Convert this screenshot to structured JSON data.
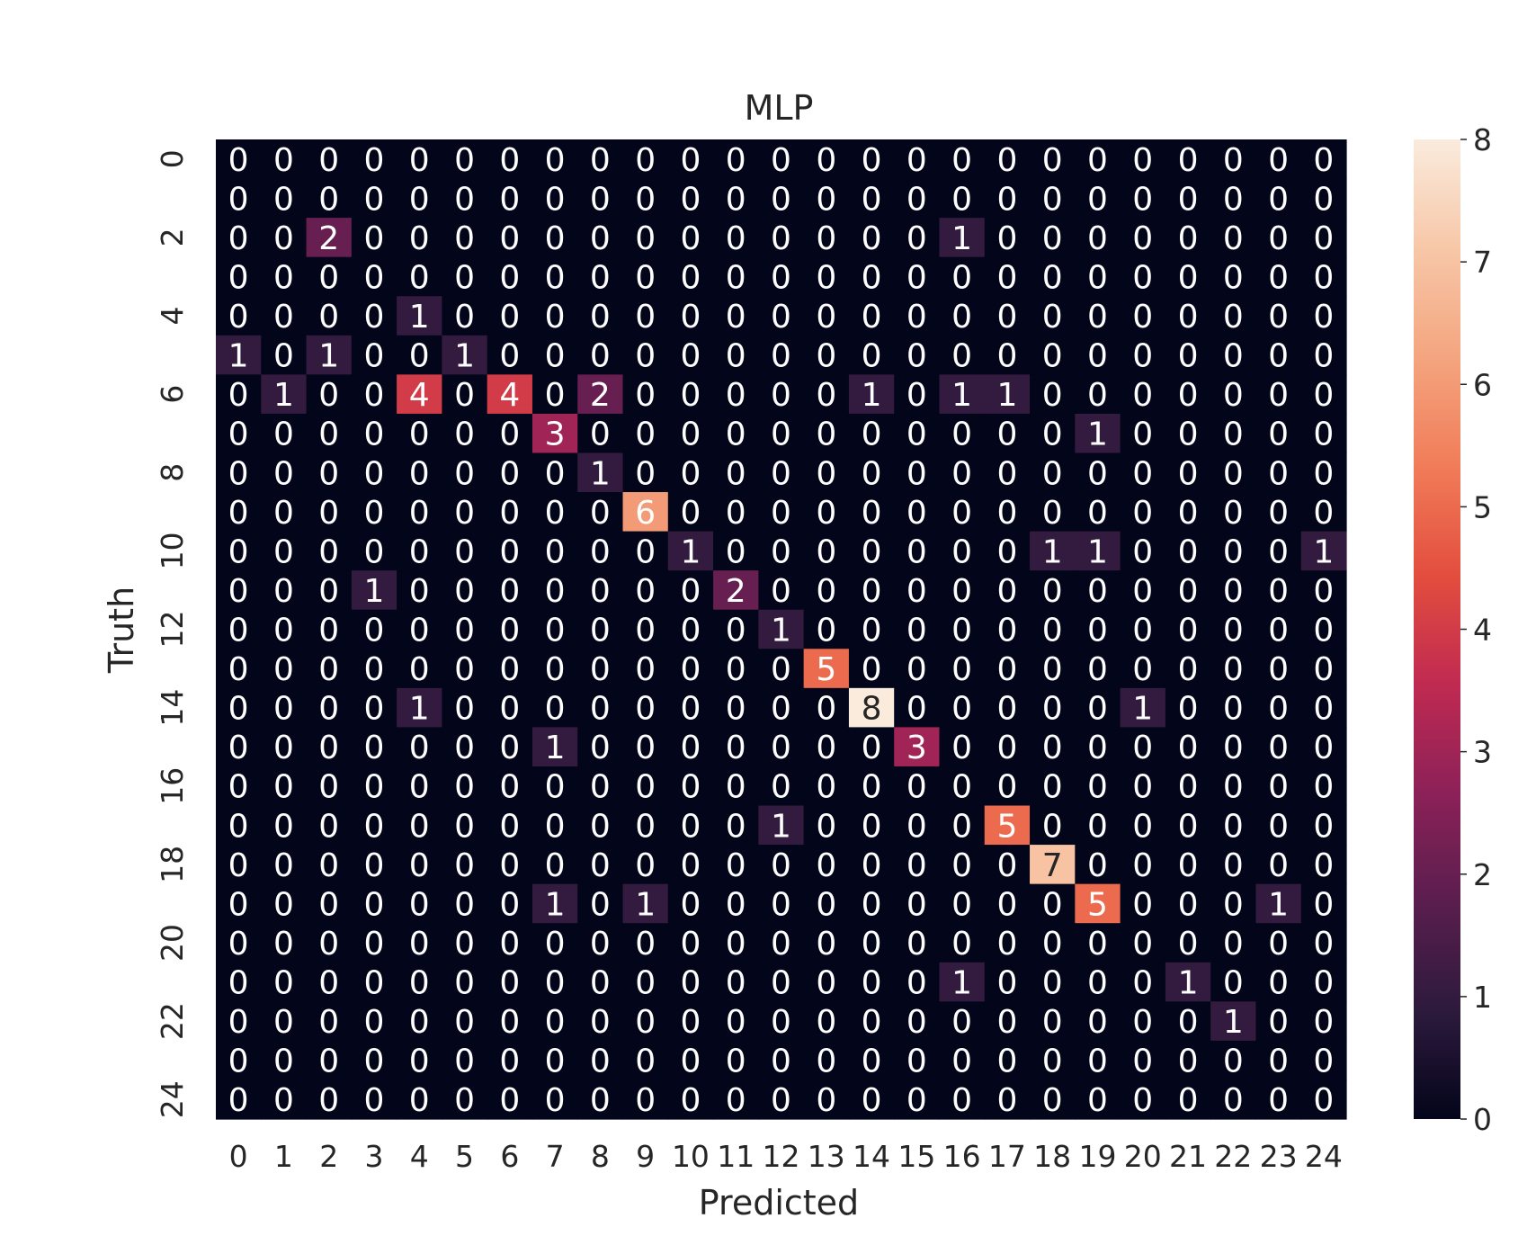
{
  "chart_data": {
    "type": "heatmap",
    "title": "MLP",
    "xlabel": "Predicted",
    "ylabel": "Truth",
    "x_tick_labels": [
      "0",
      "1",
      "2",
      "3",
      "4",
      "5",
      "6",
      "7",
      "8",
      "9",
      "10",
      "11",
      "12",
      "13",
      "14",
      "15",
      "16",
      "17",
      "18",
      "19",
      "20",
      "21",
      "22",
      "23",
      "24"
    ],
    "y_tick_labels": [
      "0",
      "2",
      "4",
      "6",
      "8",
      "10",
      "12",
      "14",
      "16",
      "18",
      "20",
      "22",
      "24"
    ],
    "y_tick_rows": [
      0,
      2,
      4,
      6,
      8,
      10,
      12,
      14,
      16,
      18,
      20,
      22,
      24
    ],
    "colorbar": {
      "min": 0,
      "max": 8,
      "ticks": [
        "0",
        "1",
        "2",
        "3",
        "4",
        "5",
        "6",
        "7",
        "8"
      ],
      "colormap": "rocket",
      "stops": [
        "#03051a",
        "#2d1a3d",
        "#5a1e4e",
        "#8c2158",
        "#c02a51",
        "#e34e3e",
        "#f17c59",
        "#f4a57f",
        "#f7c7a8",
        "#faebdd"
      ]
    },
    "matrix": [
      [
        0,
        0,
        0,
        0,
        0,
        0,
        0,
        0,
        0,
        0,
        0,
        0,
        0,
        0,
        0,
        0,
        0,
        0,
        0,
        0,
        0,
        0,
        0,
        0,
        0
      ],
      [
        0,
        0,
        0,
        0,
        0,
        0,
        0,
        0,
        0,
        0,
        0,
        0,
        0,
        0,
        0,
        0,
        0,
        0,
        0,
        0,
        0,
        0,
        0,
        0,
        0
      ],
      [
        0,
        0,
        2,
        0,
        0,
        0,
        0,
        0,
        0,
        0,
        0,
        0,
        0,
        0,
        0,
        0,
        1,
        0,
        0,
        0,
        0,
        0,
        0,
        0,
        0
      ],
      [
        0,
        0,
        0,
        0,
        0,
        0,
        0,
        0,
        0,
        0,
        0,
        0,
        0,
        0,
        0,
        0,
        0,
        0,
        0,
        0,
        0,
        0,
        0,
        0,
        0
      ],
      [
        0,
        0,
        0,
        0,
        1,
        0,
        0,
        0,
        0,
        0,
        0,
        0,
        0,
        0,
        0,
        0,
        0,
        0,
        0,
        0,
        0,
        0,
        0,
        0,
        0
      ],
      [
        1,
        0,
        1,
        0,
        0,
        1,
        0,
        0,
        0,
        0,
        0,
        0,
        0,
        0,
        0,
        0,
        0,
        0,
        0,
        0,
        0,
        0,
        0,
        0,
        0
      ],
      [
        0,
        1,
        0,
        0,
        4,
        0,
        4,
        0,
        2,
        0,
        0,
        0,
        0,
        0,
        1,
        0,
        1,
        1,
        0,
        0,
        0,
        0,
        0,
        0,
        0
      ],
      [
        0,
        0,
        0,
        0,
        0,
        0,
        0,
        3,
        0,
        0,
        0,
        0,
        0,
        0,
        0,
        0,
        0,
        0,
        0,
        1,
        0,
        0,
        0,
        0,
        0
      ],
      [
        0,
        0,
        0,
        0,
        0,
        0,
        0,
        0,
        1,
        0,
        0,
        0,
        0,
        0,
        0,
        0,
        0,
        0,
        0,
        0,
        0,
        0,
        0,
        0,
        0
      ],
      [
        0,
        0,
        0,
        0,
        0,
        0,
        0,
        0,
        0,
        6,
        0,
        0,
        0,
        0,
        0,
        0,
        0,
        0,
        0,
        0,
        0,
        0,
        0,
        0,
        0
      ],
      [
        0,
        0,
        0,
        0,
        0,
        0,
        0,
        0,
        0,
        0,
        1,
        0,
        0,
        0,
        0,
        0,
        0,
        0,
        1,
        1,
        0,
        0,
        0,
        0,
        1
      ],
      [
        0,
        0,
        0,
        1,
        0,
        0,
        0,
        0,
        0,
        0,
        0,
        2,
        0,
        0,
        0,
        0,
        0,
        0,
        0,
        0,
        0,
        0,
        0,
        0,
        0
      ],
      [
        0,
        0,
        0,
        0,
        0,
        0,
        0,
        0,
        0,
        0,
        0,
        0,
        1,
        0,
        0,
        0,
        0,
        0,
        0,
        0,
        0,
        0,
        0,
        0,
        0
      ],
      [
        0,
        0,
        0,
        0,
        0,
        0,
        0,
        0,
        0,
        0,
        0,
        0,
        0,
        5,
        0,
        0,
        0,
        0,
        0,
        0,
        0,
        0,
        0,
        0,
        0
      ],
      [
        0,
        0,
        0,
        0,
        1,
        0,
        0,
        0,
        0,
        0,
        0,
        0,
        0,
        0,
        8,
        0,
        0,
        0,
        0,
        0,
        1,
        0,
        0,
        0,
        0
      ],
      [
        0,
        0,
        0,
        0,
        0,
        0,
        0,
        1,
        0,
        0,
        0,
        0,
        0,
        0,
        0,
        3,
        0,
        0,
        0,
        0,
        0,
        0,
        0,
        0,
        0
      ],
      [
        0,
        0,
        0,
        0,
        0,
        0,
        0,
        0,
        0,
        0,
        0,
        0,
        0,
        0,
        0,
        0,
        0,
        0,
        0,
        0,
        0,
        0,
        0,
        0,
        0
      ],
      [
        0,
        0,
        0,
        0,
        0,
        0,
        0,
        0,
        0,
        0,
        0,
        0,
        1,
        0,
        0,
        0,
        0,
        5,
        0,
        0,
        0,
        0,
        0,
        0,
        0
      ],
      [
        0,
        0,
        0,
        0,
        0,
        0,
        0,
        0,
        0,
        0,
        0,
        0,
        0,
        0,
        0,
        0,
        0,
        0,
        7,
        0,
        0,
        0,
        0,
        0,
        0
      ],
      [
        0,
        0,
        0,
        0,
        0,
        0,
        0,
        1,
        0,
        1,
        0,
        0,
        0,
        0,
        0,
        0,
        0,
        0,
        0,
        5,
        0,
        0,
        0,
        1,
        0
      ],
      [
        0,
        0,
        0,
        0,
        0,
        0,
        0,
        0,
        0,
        0,
        0,
        0,
        0,
        0,
        0,
        0,
        0,
        0,
        0,
        0,
        0,
        0,
        0,
        0,
        0
      ],
      [
        0,
        0,
        0,
        0,
        0,
        0,
        0,
        0,
        0,
        0,
        0,
        0,
        0,
        0,
        0,
        0,
        1,
        0,
        0,
        0,
        0,
        1,
        0,
        0,
        0
      ],
      [
        0,
        0,
        0,
        0,
        0,
        0,
        0,
        0,
        0,
        0,
        0,
        0,
        0,
        0,
        0,
        0,
        0,
        0,
        0,
        0,
        0,
        0,
        1,
        0,
        0
      ],
      [
        0,
        0,
        0,
        0,
        0,
        0,
        0,
        0,
        0,
        0,
        0,
        0,
        0,
        0,
        0,
        0,
        0,
        0,
        0,
        0,
        0,
        0,
        0,
        0,
        0
      ],
      [
        0,
        0,
        0,
        0,
        0,
        0,
        0,
        0,
        0,
        0,
        0,
        0,
        0,
        0,
        0,
        0,
        0,
        0,
        0,
        0,
        0,
        0,
        0,
        0,
        0
      ]
    ]
  }
}
